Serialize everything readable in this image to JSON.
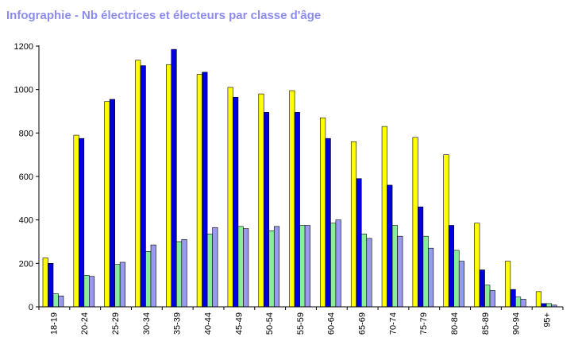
{
  "title": "Infographie - Nb électrices et électeurs par classe d'âge",
  "colors": {
    "title": "#8c8cf0",
    "series": [
      "#ffff00",
      "#0000dd",
      "#88ee99",
      "#9999ee"
    ]
  },
  "chart_data": {
    "type": "bar",
    "title": "Infographie - Nb électrices et électeurs par classe d'âge",
    "xlabel": "",
    "ylabel": "",
    "ylim": [
      0,
      1200
    ],
    "yticks": [
      0,
      200,
      400,
      600,
      800,
      1000,
      1200
    ],
    "grid": false,
    "legend": "none",
    "categories": [
      "18-19",
      "20-24",
      "25-29",
      "30-34",
      "35-39",
      "40-44",
      "45-49",
      "50-54",
      "55-59",
      "60-64",
      "65-69",
      "70-74",
      "75-79",
      "80-84",
      "85-89",
      "90-94",
      "95+"
    ],
    "series": [
      {
        "color": "#ffff00",
        "values": [
          225,
          790,
          945,
          1135,
          1115,
          1070,
          1010,
          980,
          995,
          870,
          760,
          830,
          780,
          700,
          385,
          210,
          70
        ]
      },
      {
        "color": "#0000dd",
        "values": [
          200,
          775,
          955,
          1110,
          1185,
          1080,
          965,
          895,
          895,
          775,
          590,
          560,
          460,
          375,
          170,
          80,
          15
        ]
      },
      {
        "color": "#88ee99",
        "values": [
          60,
          145,
          195,
          255,
          300,
          335,
          370,
          350,
          375,
          385,
          335,
          375,
          325,
          260,
          100,
          45,
          15
        ]
      },
      {
        "color": "#9999ee",
        "values": [
          50,
          140,
          205,
          285,
          310,
          365,
          360,
          370,
          375,
          400,
          315,
          325,
          270,
          210,
          75,
          35,
          8
        ]
      }
    ]
  }
}
